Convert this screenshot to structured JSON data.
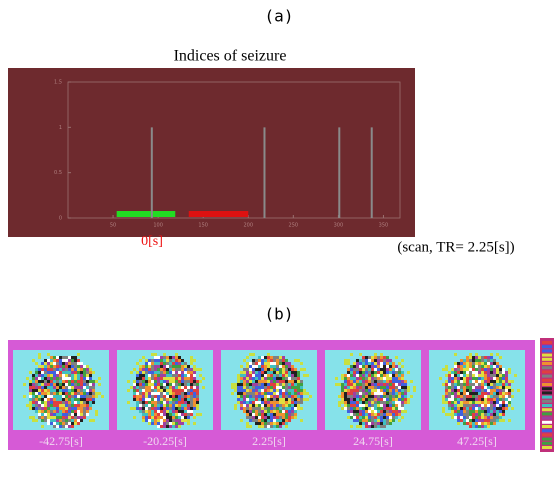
{
  "panel_a": {
    "label": "(a)",
    "title": "Indices of seizure",
    "onset_label": "0[s]",
    "axis_note": "(scan, TR= 2.25[s])",
    "chart_data": {
      "type": "impulse",
      "x": [
        93,
        218,
        301,
        337
      ],
      "values": [
        1,
        1,
        1,
        1
      ],
      "color": "#8a8a8a",
      "intervals": [
        {
          "start": 54,
          "end": 119,
          "color": "#22dd22"
        },
        {
          "start": 134,
          "end": 200,
          "color": "#dd1111"
        }
      ],
      "xlim": [
        0,
        385
      ],
      "ylim": [
        0,
        1.5
      ],
      "xticks": [
        50,
        100,
        150,
        200,
        250,
        300,
        350
      ],
      "yticks": [
        0,
        0.5,
        1,
        1.5
      ]
    }
  },
  "panel_b": {
    "label": "(b)",
    "captions": [
      "-42.75[s]",
      "-20.25[s]",
      "2.25[s]",
      "24.75[s]",
      "47.25[s]"
    ]
  }
}
